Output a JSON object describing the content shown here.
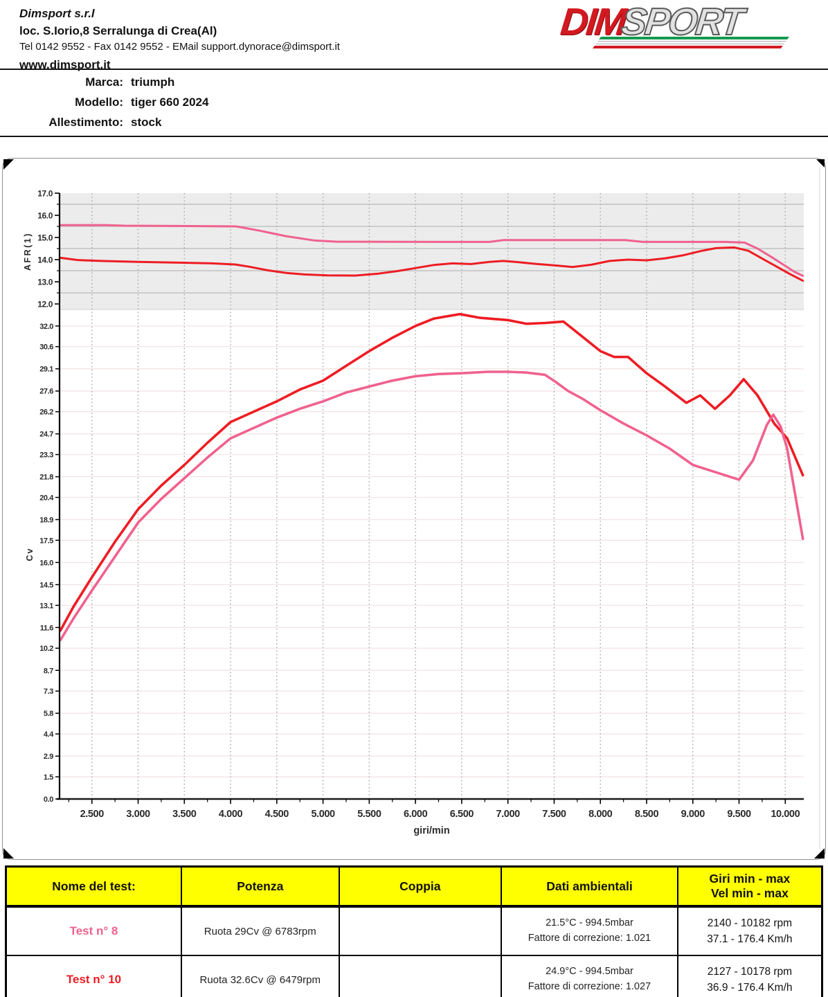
{
  "company": {
    "name": "Dimsport s.r.l",
    "address": "loc. S.Iorio,8 Serralunga di Crea(Al)",
    "contact": "Tel 0142 9552 - Fax 0142 9552 - EMail support.dynorace@dimsport.it",
    "website": "www.dimsport.it"
  },
  "logo": {
    "part1": "DIM",
    "part2": "SPORT"
  },
  "vehicle": {
    "marca_label": "Marca:",
    "marca_value": "triumph",
    "modello_label": "Modello:",
    "modello_value": "tiger 660 2024",
    "allestimento_label": "Allestimento:",
    "allestimento_value": "stock"
  },
  "chart_data": {
    "type": "line",
    "x_axis": {
      "label": "giri/min",
      "range_rpm": [
        2150,
        10200
      ],
      "ticks_rpm": [
        2500,
        3000,
        3500,
        4000,
        4500,
        5000,
        5500,
        6000,
        6500,
        7000,
        7500,
        8000,
        8500,
        9000,
        9500,
        10000
      ],
      "tick_labels": [
        "2.500",
        "3.000",
        "3.500",
        "4.000",
        "4.500",
        "5.000",
        "5.500",
        "6.000",
        "6.500",
        "7.000",
        "7.500",
        "8.000",
        "8.500",
        "9.000",
        "9.500",
        "10.000"
      ],
      "minor_ticks_rpm": [
        2250,
        2750,
        3250,
        3750,
        4250,
        4750,
        5250,
        5750,
        6250,
        6750,
        7250,
        7750,
        8250,
        8750,
        9250,
        9750
      ]
    },
    "afr_axis": {
      "label": "AFR(1)",
      "range": [
        12.0,
        17.0
      ],
      "ticks": [
        17.0,
        16.0,
        15.0,
        14.0,
        13.0,
        12.0
      ],
      "tick_labels": [
        "17.0",
        "16.0",
        "15.0",
        "14.0",
        "13.0",
        "12.0"
      ],
      "minor_gridlines": [
        16.5,
        15.5,
        14.5,
        13.5,
        12.5
      ],
      "background": "#ececec"
    },
    "cv_axis": {
      "label": "Cv",
      "range": [
        0.0,
        32.0
      ],
      "ticks": [
        32.0,
        30.6,
        29.1,
        27.6,
        26.2,
        24.7,
        23.3,
        21.8,
        20.4,
        18.9,
        17.5,
        16.0,
        14.5,
        13.1,
        11.6,
        10.2,
        8.7,
        7.3,
        5.8,
        4.4,
        2.9,
        1.5,
        0.0
      ],
      "tick_labels": [
        "32.0",
        "30.6",
        "29.1",
        "27.6",
        "26.2",
        "24.7",
        "23.3",
        "21.8",
        "20.4",
        "18.9",
        "17.5",
        "16.0",
        "14.5",
        "13.1",
        "11.6",
        "10.2",
        "8.7",
        "7.3",
        "5.8",
        "4.4",
        "2.9",
        "1.5",
        "0.0"
      ]
    },
    "colors": {
      "test8": "#f0618e",
      "test10": "#ee1c23",
      "grid_minor": "#b9b9b9",
      "grid_dotted": "#a5a5a5",
      "grid_cv": "#f2e1e1"
    },
    "series": [
      {
        "id": "afr_test10",
        "name": "Test n° 10 AFR",
        "axis": "afr",
        "color": "#ee1c23",
        "points": [
          [
            2160,
            14.08
          ],
          [
            2350,
            13.98
          ],
          [
            2600,
            13.94
          ],
          [
            3000,
            13.9
          ],
          [
            3400,
            13.87
          ],
          [
            3800,
            13.83
          ],
          [
            4050,
            13.78
          ],
          [
            4200,
            13.68
          ],
          [
            4400,
            13.52
          ],
          [
            4600,
            13.4
          ],
          [
            4800,
            13.33
          ],
          [
            5050,
            13.29
          ],
          [
            5350,
            13.28
          ],
          [
            5600,
            13.37
          ],
          [
            5800,
            13.48
          ],
          [
            6000,
            13.62
          ],
          [
            6200,
            13.76
          ],
          [
            6400,
            13.83
          ],
          [
            6600,
            13.8
          ],
          [
            6800,
            13.9
          ],
          [
            6950,
            13.94
          ],
          [
            7100,
            13.89
          ],
          [
            7300,
            13.81
          ],
          [
            7500,
            13.74
          ],
          [
            7700,
            13.67
          ],
          [
            7900,
            13.77
          ],
          [
            8100,
            13.94
          ],
          [
            8300,
            14.0
          ],
          [
            8500,
            13.97
          ],
          [
            8700,
            14.06
          ],
          [
            8900,
            14.2
          ],
          [
            9100,
            14.4
          ],
          [
            9250,
            14.52
          ],
          [
            9450,
            14.55
          ],
          [
            9600,
            14.4
          ],
          [
            9750,
            14.05
          ],
          [
            9900,
            13.7
          ],
          [
            10050,
            13.35
          ],
          [
            10190,
            13.05
          ]
        ]
      },
      {
        "id": "afr_test8",
        "name": "Test n° 8 AFR",
        "axis": "afr",
        "color": "#f0618e",
        "points": [
          [
            2160,
            15.56
          ],
          [
            2650,
            15.56
          ],
          [
            2850,
            15.53
          ],
          [
            3400,
            15.52
          ],
          [
            4060,
            15.5
          ],
          [
            4300,
            15.32
          ],
          [
            4600,
            15.06
          ],
          [
            4900,
            14.87
          ],
          [
            5150,
            14.81
          ],
          [
            6400,
            14.8
          ],
          [
            6800,
            14.8
          ],
          [
            6950,
            14.88
          ],
          [
            8270,
            14.88
          ],
          [
            8460,
            14.8
          ],
          [
            9350,
            14.8
          ],
          [
            9560,
            14.77
          ],
          [
            9700,
            14.5
          ],
          [
            9850,
            14.12
          ],
          [
            10000,
            13.72
          ],
          [
            10100,
            13.45
          ],
          [
            10190,
            13.27
          ]
        ]
      },
      {
        "id": "power_test10",
        "name": "Test n° 10 Cv",
        "axis": "cv",
        "color": "#ee1c23",
        "points": [
          [
            2160,
            11.4
          ],
          [
            2300,
            13.0
          ],
          [
            2500,
            15.0
          ],
          [
            2750,
            17.4
          ],
          [
            3000,
            19.6
          ],
          [
            3250,
            21.2
          ],
          [
            3500,
            22.6
          ],
          [
            3750,
            24.1
          ],
          [
            4000,
            25.5
          ],
          [
            4250,
            26.2
          ],
          [
            4500,
            26.9
          ],
          [
            4750,
            27.7
          ],
          [
            5000,
            28.3
          ],
          [
            5250,
            29.3
          ],
          [
            5500,
            30.3
          ],
          [
            5750,
            31.2
          ],
          [
            6000,
            32.0
          ],
          [
            6200,
            32.5
          ],
          [
            6480,
            32.8
          ],
          [
            6700,
            32.55
          ],
          [
            7000,
            32.4
          ],
          [
            7200,
            32.15
          ],
          [
            7400,
            32.2
          ],
          [
            7600,
            32.3
          ],
          [
            7800,
            31.3
          ],
          [
            8000,
            30.3
          ],
          [
            8150,
            29.9
          ],
          [
            8300,
            29.9
          ],
          [
            8500,
            28.8
          ],
          [
            8700,
            27.9
          ],
          [
            8930,
            26.8
          ],
          [
            9080,
            27.3
          ],
          [
            9240,
            26.4
          ],
          [
            9400,
            27.3
          ],
          [
            9550,
            28.4
          ],
          [
            9700,
            27.3
          ],
          [
            9880,
            25.4
          ],
          [
            10020,
            24.4
          ],
          [
            10190,
            21.9
          ]
        ]
      },
      {
        "id": "power_test8",
        "name": "Test n° 8 Cv",
        "axis": "cv",
        "color": "#f0618e",
        "points": [
          [
            2160,
            10.75
          ],
          [
            2300,
            12.2
          ],
          [
            2500,
            14.1
          ],
          [
            2750,
            16.4
          ],
          [
            3000,
            18.7
          ],
          [
            3250,
            20.3
          ],
          [
            3500,
            21.7
          ],
          [
            3750,
            23.1
          ],
          [
            4000,
            24.4
          ],
          [
            4250,
            25.1
          ],
          [
            4500,
            25.8
          ],
          [
            4750,
            26.4
          ],
          [
            5000,
            26.9
          ],
          [
            5250,
            27.5
          ],
          [
            5500,
            27.9
          ],
          [
            5750,
            28.3
          ],
          [
            6000,
            28.6
          ],
          [
            6250,
            28.75
          ],
          [
            6500,
            28.8
          ],
          [
            6780,
            28.9
          ],
          [
            7000,
            28.9
          ],
          [
            7200,
            28.85
          ],
          [
            7400,
            28.7
          ],
          [
            7520,
            28.2
          ],
          [
            7650,
            27.6
          ],
          [
            7800,
            27.1
          ],
          [
            8000,
            26.3
          ],
          [
            8250,
            25.4
          ],
          [
            8500,
            24.6
          ],
          [
            8750,
            23.7
          ],
          [
            9000,
            22.6
          ],
          [
            9250,
            22.1
          ],
          [
            9500,
            21.6
          ],
          [
            9650,
            22.9
          ],
          [
            9800,
            25.3
          ],
          [
            9870,
            26.0
          ],
          [
            9950,
            25.2
          ],
          [
            10020,
            23.7
          ],
          [
            10190,
            17.6
          ]
        ]
      }
    ]
  },
  "table": {
    "headers": [
      "Nome del test:",
      "Potenza",
      "Coppia",
      "Dati ambientali"
    ],
    "header_giri": [
      "Giri min - max",
      "Vel  min - max"
    ],
    "rows": [
      {
        "name": "Test n° 8",
        "color": "#f0618e",
        "potenza": "Ruota 29Cv @ 6783rpm",
        "coppia": "",
        "ambient1": "21.5°C - 994.5mbar",
        "ambient2": "Fattore di correzione: 1.021",
        "giri": "2140 - 10182 rpm",
        "vel": "37.1 - 176.4 Km/h"
      },
      {
        "name": "Test n° 10",
        "color": "#ee1c23",
        "potenza": "Ruota 32.6Cv @ 6479rpm",
        "coppia": "",
        "ambient1": "24.9°C - 994.5mbar",
        "ambient2": "Fattore di correzione: 1.027",
        "giri": "2127 - 10178 rpm",
        "vel": "36.9 - 176.4 Km/h"
      }
    ]
  }
}
